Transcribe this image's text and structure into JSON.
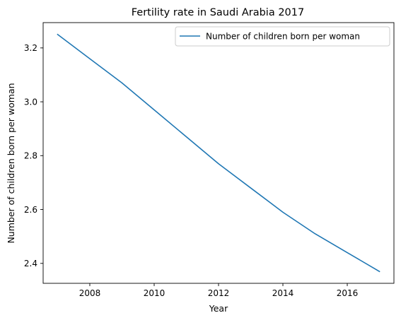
{
  "chart_data": {
    "type": "line",
    "title": "Fertility rate in Saudi Arabia 2017",
    "xlabel": "Year",
    "ylabel": "Number of children born per woman",
    "xlim": [
      2006.55,
      2017.45
    ],
    "ylim": [
      2.326,
      3.294
    ],
    "xticks": [
      2008,
      2010,
      2012,
      2014,
      2016
    ],
    "xtick_labels": [
      "2008",
      "2010",
      "2012",
      "2014",
      "2016"
    ],
    "yticks": [
      2.4,
      2.6,
      2.8,
      3.0,
      3.2
    ],
    "ytick_labels": [
      "2.4",
      "2.6",
      "2.8",
      "3.0",
      "3.2"
    ],
    "grid": false,
    "legend_position": "top-right",
    "series": [
      {
        "name": "Number of children born per woman",
        "color": "#1f77b4",
        "x": [
          2007,
          2008,
          2009,
          2010,
          2011,
          2012,
          2013,
          2014,
          2015,
          2016,
          2017
        ],
        "y": [
          3.25,
          3.16,
          3.07,
          2.97,
          2.87,
          2.77,
          2.68,
          2.59,
          2.51,
          2.44,
          2.37
        ]
      }
    ]
  }
}
